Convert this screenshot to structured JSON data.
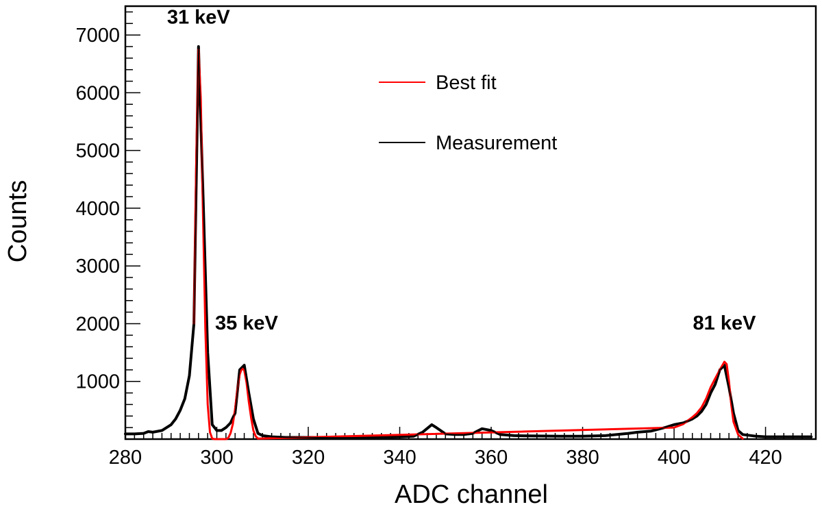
{
  "chart_data": {
    "type": "line",
    "title": "",
    "xlabel": "ADC channel",
    "ylabel": "Counts",
    "xlim": [
      280,
      431
    ],
    "ylim": [
      0,
      7500
    ],
    "xticks": [
      280,
      300,
      320,
      340,
      360,
      380,
      400,
      420
    ],
    "yticks": [
      1000,
      2000,
      3000,
      4000,
      5000,
      6000,
      7000
    ],
    "legend": {
      "position": "top-center",
      "entries": [
        {
          "label": "Best fit",
          "color": "#ff0000"
        },
        {
          "label": "Measurement",
          "color": "#000000"
        }
      ]
    },
    "annotations": [
      {
        "text": "31 keV",
        "x": 296,
        "y": 7200
      },
      {
        "text": "35 keV",
        "x": 306.5,
        "y": 1900
      },
      {
        "text": "81 keV",
        "x": 411,
        "y": 1900
      }
    ],
    "series": [
      {
        "name": "Measurement",
        "color": "#000000",
        "x": [
          280,
          282,
          284,
          285,
          286,
          288,
          290,
          291,
          292,
          293,
          294,
          295,
          296,
          297,
          298,
          299,
          300,
          301,
          302,
          303,
          304,
          305,
          306,
          307,
          308,
          309,
          310,
          312,
          315,
          320,
          325,
          330,
          335,
          340,
          343,
          345,
          347,
          348,
          350,
          352,
          354,
          356,
          358,
          360,
          362,
          365,
          370,
          375,
          380,
          385,
          390,
          392,
          395,
          398,
          400,
          402,
          404,
          405,
          406,
          407,
          408,
          409,
          410,
          411,
          412,
          413,
          414,
          415,
          418,
          420,
          425,
          430
        ],
        "values": [
          90,
          90,
          100,
          130,
          120,
          150,
          250,
          350,
          500,
          700,
          1100,
          2000,
          6800,
          4200,
          1500,
          250,
          150,
          150,
          200,
          280,
          450,
          1200,
          1280,
          800,
          350,
          100,
          60,
          40,
          30,
          30,
          25,
          25,
          30,
          40,
          50,
          120,
          250,
          200,
          90,
          80,
          80,
          100,
          180,
          150,
          80,
          60,
          55,
          50,
          50,
          60,
          100,
          120,
          140,
          200,
          250,
          280,
          350,
          400,
          480,
          600,
          800,
          950,
          1200,
          1280,
          900,
          450,
          150,
          80,
          50,
          40,
          40,
          40
        ]
      },
      {
        "name": "Best fit",
        "color": "#ff0000",
        "x": [
          295,
          295.5,
          296,
          296.5,
          297,
          297.5,
          298,
          298.5,
          299,
          299.5,
          300,
          300.5,
          301,
          301.5,
          302,
          302.5,
          303,
          303.5,
          304,
          304.5,
          305,
          305.5,
          306,
          306.5,
          307,
          307.5,
          308,
          308.5,
          309,
          400,
          402,
          404,
          405,
          406,
          407,
          408,
          409,
          410,
          411,
          411.5,
          412,
          412.5,
          413,
          414,
          415
        ],
        "values": [
          2000,
          4800,
          6750,
          5900,
          3800,
          1900,
          600,
          120,
          10,
          0,
          0,
          0,
          0,
          0,
          0,
          20,
          100,
          260,
          520,
          850,
          1120,
          1230,
          1190,
          980,
          650,
          370,
          150,
          50,
          10,
          200,
          260,
          380,
          450,
          550,
          700,
          900,
          1050,
          1200,
          1340,
          1300,
          1000,
          600,
          300,
          80,
          10
        ]
      }
    ]
  }
}
